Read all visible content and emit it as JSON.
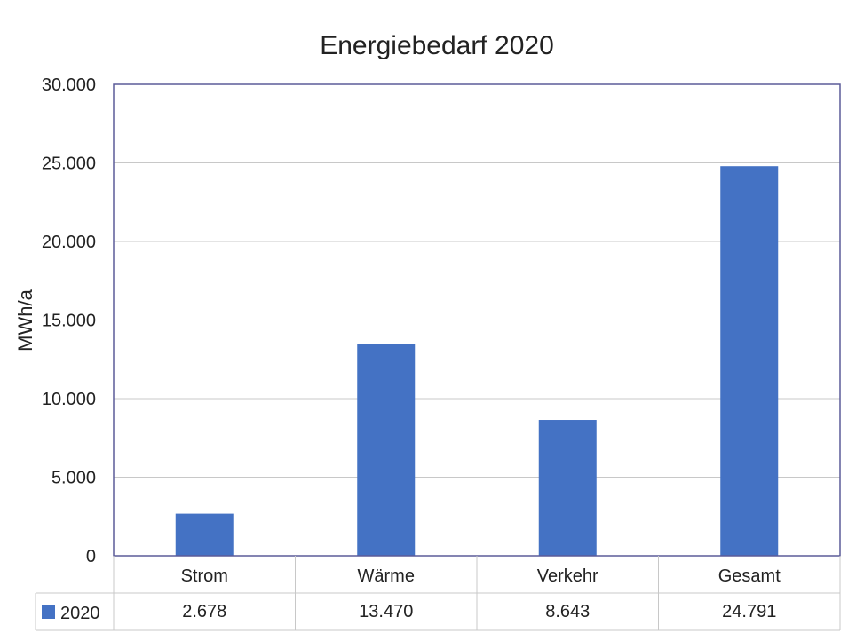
{
  "chart_data": {
    "type": "bar",
    "title": "Energiebedarf 2020",
    "ylabel": "MWh/a",
    "xlabel": "",
    "ylim": [
      0,
      30000
    ],
    "yticks": [
      0,
      5000,
      10000,
      15000,
      20000,
      25000,
      30000
    ],
    "ytick_labels": [
      "0",
      "5.000",
      "10.000",
      "15.000",
      "20.000",
      "25.000",
      "30.000"
    ],
    "categories": [
      "Strom",
      "Wärme",
      "Verkehr",
      "Gesamt"
    ],
    "series": [
      {
        "name": "2020",
        "values": [
          2678,
          13470,
          8643,
          24791
        ],
        "value_labels": [
          "2.678",
          "13.470",
          "8.643",
          "24.791"
        ],
        "color": "#4472c4"
      }
    ],
    "grid": true,
    "legend": "data-table-left",
    "data_table": true
  }
}
